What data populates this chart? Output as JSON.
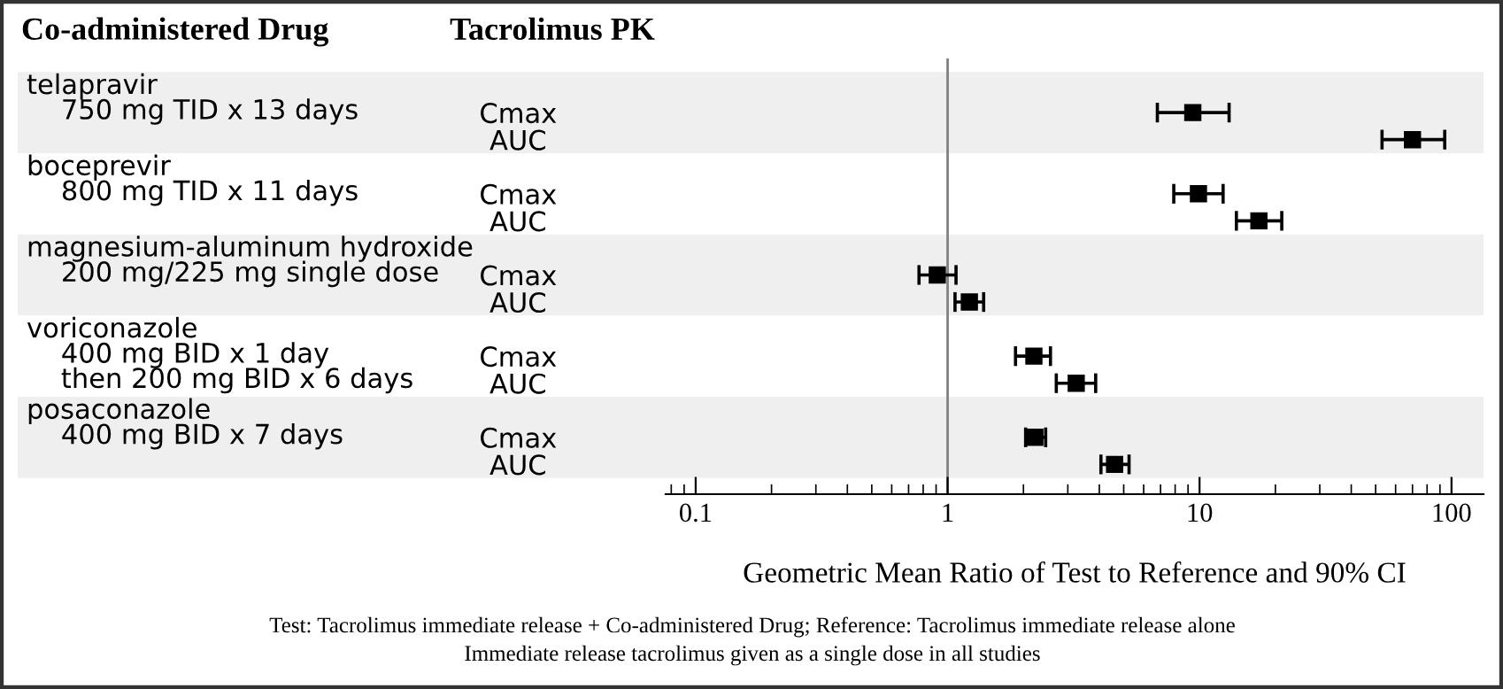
{
  "chart_data": {
    "type": "scatter",
    "orientation": "horizontal",
    "marker": "square",
    "legend": false,
    "grid": false,
    "log": "x",
    "xlabel": "Geometric Mean Ratio of Test to Reference and 90% CI",
    "categories": [
      "Cmax",
      "AUC",
      "Cmax",
      "AUC",
      "Cmax",
      "AUC",
      "Cmax",
      "AUC",
      "Cmax",
      "AUC"
    ],
    "series": [
      {
        "color": "#000000",
        "values": [
          9.4,
          70,
          9.9,
          17.2,
          0.91,
          1.22,
          2.2,
          3.24,
          2.22,
          4.6
        ],
        "errors": [
          [
            6.8,
            13.1
          ],
          [
            53,
            94
          ],
          [
            7.9,
            12.4
          ],
          [
            14.0,
            21.2
          ],
          [
            0.77,
            1.08
          ],
          [
            1.07,
            1.39
          ],
          [
            1.86,
            2.56
          ],
          [
            2.7,
            3.87
          ],
          [
            2.04,
            2.45
          ],
          [
            4.06,
            5.25
          ]
        ]
      }
    ],
    "xlim": [
      0.076,
      134
    ],
    "xticks": [
      0.1,
      1,
      10,
      100
    ],
    "ref_lines": [
      {
        "axis": "x",
        "value": 1,
        "color": "#808080"
      }
    ],
    "annotations": [
      "Co-administered Drug",
      "Tacrolimus PK",
      "telapravir\n    750 mg TID x 13 days",
      "boceprevir\n    800 mg TID x 11 days",
      "magnesium-aluminum hydroxide\n    200 mg/225 mg single dose",
      "voriconazole\n    400 mg BID x 1 day\n    then 200 mg BID x 6 days",
      "posaconazole\n    400 mg BID x 7 days",
      "Test: Tacrolimus immediate release + Co-administered Drug; Reference: Tacrolimus immediate release alone",
      "Immediate release tacrolimus given as a single dose in all studies"
    ]
  }
}
